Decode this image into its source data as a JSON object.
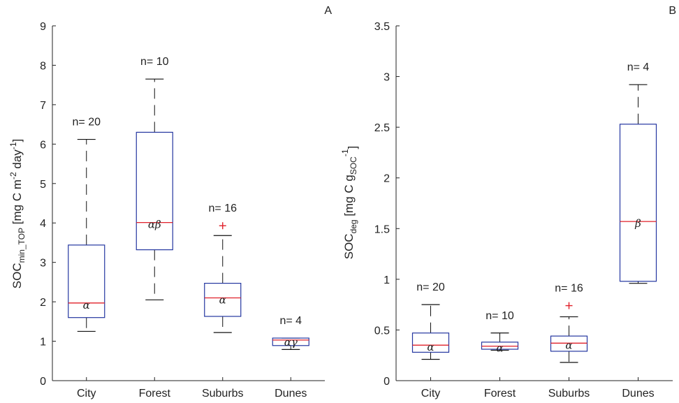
{
  "colors": {
    "box": "#2436a0",
    "median": "#e0202a",
    "whisker": "#111111",
    "outlier": "#e0202a",
    "axis": "#222222"
  },
  "chart_data": [
    {
      "type": "box",
      "panel_label": "A",
      "ylabel": {
        "base": "SOC",
        "sub": "min_TOP",
        "unit_pre": " [mg C m",
        "sup1": "-2",
        "unit_mid": " day",
        "sup2": "-1",
        "unit_post": "]"
      },
      "categories": [
        "City",
        "Forest",
        "Suburbs",
        "Dunes"
      ],
      "ylim": [
        0,
        9
      ],
      "yticks": [
        "0",
        "1",
        "2",
        "3",
        "4",
        "5",
        "6",
        "7",
        "8",
        "9"
      ],
      "boxes": [
        {
          "category": "City",
          "whisker_low": 1.25,
          "q1": 1.6,
          "median": 1.97,
          "q3": 3.44,
          "whisker_high": 6.12,
          "outliers": [],
          "n_label": "n= 20",
          "group": "α"
        },
        {
          "category": "Forest",
          "whisker_low": 2.05,
          "q1": 3.32,
          "median": 4.01,
          "q3": 6.3,
          "whisker_high": 7.65,
          "outliers": [],
          "n_label": "n= 10",
          "group": "αβ"
        },
        {
          "category": "Suburbs",
          "whisker_low": 1.22,
          "q1": 1.63,
          "median": 2.1,
          "q3": 2.47,
          "whisker_high": 3.68,
          "outliers": [
            3.93
          ],
          "n_label": "n= 16",
          "group": "α"
        },
        {
          "category": "Dunes",
          "whisker_low": 0.79,
          "q1": 0.89,
          "median": 1.03,
          "q3": 1.08,
          "whisker_high": 1.08,
          "outliers": [],
          "n_label": "n= 4",
          "group": "αγ"
        }
      ]
    },
    {
      "type": "box",
      "panel_label": "B",
      "ylabel": {
        "base": "SOC",
        "sub": "deg",
        "unit_pre": " [mg C g",
        "sub2": "SOC",
        "unit_mid": "",
        "sup2": "-1",
        "unit_post": "]"
      },
      "categories": [
        "City",
        "Forest",
        "Suburbs",
        "Dunes"
      ],
      "ylim": [
        0,
        3.5
      ],
      "yticks": [
        "0",
        "0.5",
        "1",
        "1.5",
        "2",
        "2.5",
        "3",
        "3.5"
      ],
      "boxes": [
        {
          "category": "City",
          "whisker_low": 0.21,
          "q1": 0.28,
          "median": 0.35,
          "q3": 0.47,
          "whisker_high": 0.75,
          "outliers": [],
          "n_label": "n= 20",
          "group": "α"
        },
        {
          "category": "Forest",
          "whisker_low": 0.3,
          "q1": 0.31,
          "median": 0.34,
          "q3": 0.38,
          "whisker_high": 0.47,
          "outliers": [],
          "n_label": "n= 10",
          "group": "α"
        },
        {
          "category": "Suburbs",
          "whisker_low": 0.18,
          "q1": 0.29,
          "median": 0.37,
          "q3": 0.44,
          "whisker_high": 0.63,
          "outliers": [
            0.74
          ],
          "n_label": "n= 16",
          "group": "α"
        },
        {
          "category": "Dunes",
          "whisker_low": 0.96,
          "q1": 0.98,
          "median": 1.57,
          "q3": 2.53,
          "whisker_high": 2.92,
          "outliers": [],
          "n_label": "n= 4",
          "group": "β"
        }
      ]
    }
  ]
}
